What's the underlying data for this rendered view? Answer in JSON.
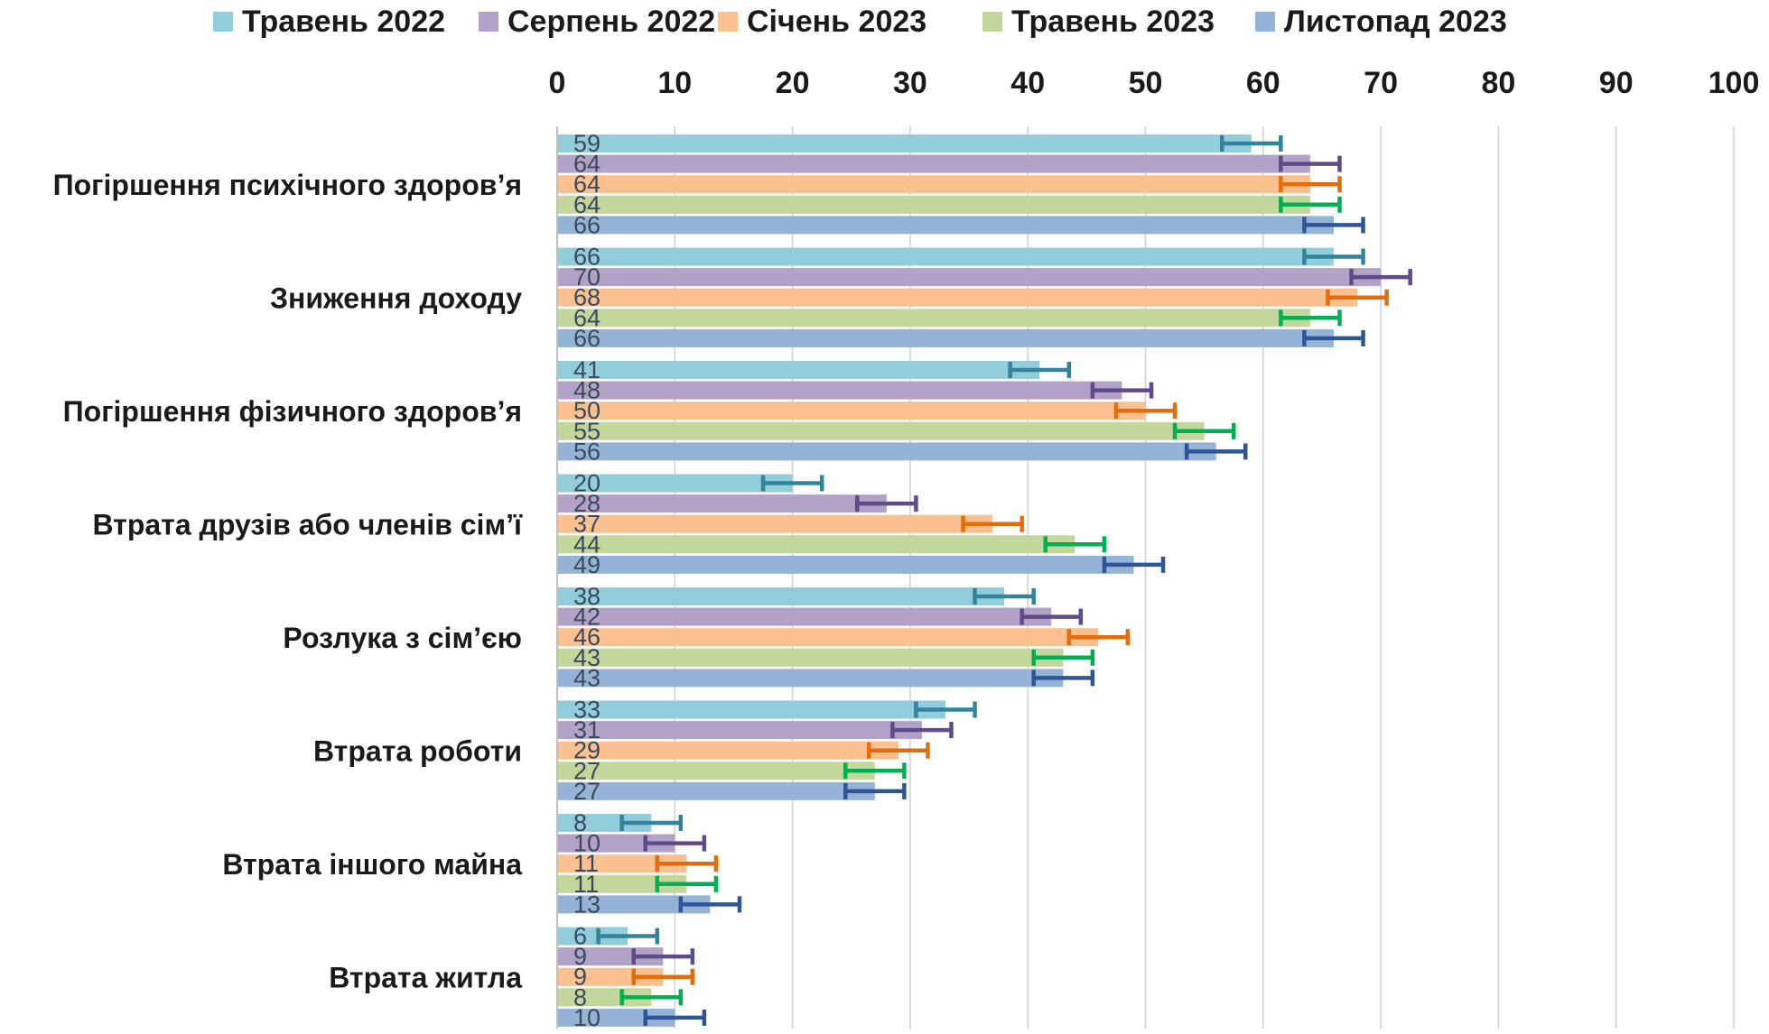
{
  "chart_data": {
    "type": "bar",
    "orientation": "horizontal",
    "xlim": [
      0,
      100
    ],
    "x_ticks": [
      "0",
      "10",
      "20",
      "30",
      "40",
      "50",
      "60",
      "70",
      "80",
      "90",
      "100"
    ],
    "grid": "vertical",
    "legend_position": "top",
    "error_bars": true,
    "categories": [
      "Погіршення психічного здоров’я",
      "Зниження доходу",
      "Погіршення фізичного здоров’я",
      "Втрата друзів або членів сім’ї",
      "Розлука з сім’єю",
      "Втрата роботи",
      "Втрата іншого майна",
      "Втрата житла"
    ],
    "series": [
      {
        "name": "Травень 2022",
        "color": "#92cddc",
        "error_color": "#31849b",
        "values": [
          59,
          66,
          41,
          20,
          38,
          33,
          8,
          6
        ]
      },
      {
        "name": "Серпень 2022",
        "color": "#b3a2c7",
        "error_color": "#5f4b8b",
        "values": [
          64,
          70,
          48,
          28,
          42,
          31,
          10,
          9
        ]
      },
      {
        "name": "Січень 2023",
        "color": "#fac090",
        "error_color": "#e46c0a",
        "values": [
          64,
          68,
          50,
          37,
          46,
          29,
          11,
          9
        ]
      },
      {
        "name": "Травень 2023",
        "color": "#c3d69b",
        "error_color": "#00b050",
        "values": [
          64,
          64,
          55,
          44,
          43,
          27,
          11,
          8
        ]
      },
      {
        "name": "Листопад 2023",
        "color": "#95b3d7",
        "error_color": "#2e5597",
        "values": [
          66,
          66,
          56,
          49,
          43,
          27,
          13,
          10
        ]
      }
    ]
  }
}
